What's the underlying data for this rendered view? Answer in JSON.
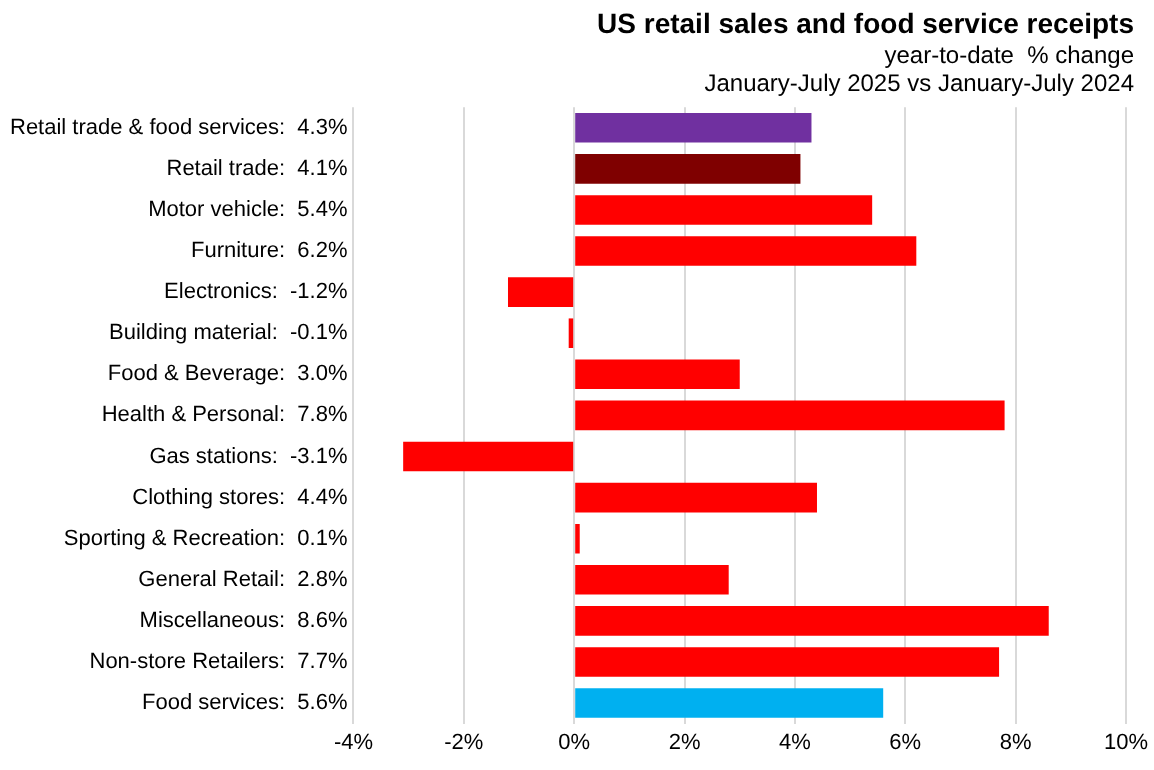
{
  "chart_data": {
    "type": "bar",
    "orientation": "horizontal",
    "title": "US retail sales and food service receipts",
    "subtitle": "year-to-date  % change",
    "annotations": [
      "January-July 2025 vs January-July 2024"
    ],
    "categories": [
      "Retail trade & food services:  4.3%",
      "Retail trade:  4.1%",
      "Motor vehicle:  5.4%",
      "Furniture:  6.2%",
      "Electronics:  -1.2%",
      "Building material:  -0.1%",
      "Food & Beverage:  3.0%",
      "Health & Personal:  7.8%",
      "Gas stations:  -3.1%",
      "Clothing stores:  4.4%",
      "Sporting & Recreation:  0.1%",
      "General Retail:  2.8%",
      "Miscellaneous:  8.6%",
      "Non-store Retailers:  7.7%",
      "Food services:  5.6%"
    ],
    "values": [
      4.3,
      4.1,
      5.4,
      6.2,
      -1.2,
      -0.1,
      3.0,
      7.8,
      -3.1,
      4.4,
      0.1,
      2.8,
      8.6,
      7.7,
      5.6
    ],
    "colors": [
      "#7030a0",
      "#7f0000",
      "#ff0000",
      "#ff0000",
      "#ff0000",
      "#ff0000",
      "#ff0000",
      "#ff0000",
      "#ff0000",
      "#ff0000",
      "#ff0000",
      "#ff0000",
      "#ff0000",
      "#ff0000",
      "#00b0f0"
    ],
    "xlim": [
      -4,
      10
    ],
    "xticks": [
      {
        "value": -4,
        "label": "-4%"
      },
      {
        "value": -2,
        "label": "-2%"
      },
      {
        "value": 0,
        "label": "0%"
      },
      {
        "value": 2,
        "label": "2%"
      },
      {
        "value": 4,
        "label": "4%"
      },
      {
        "value": 6,
        "label": "6%"
      },
      {
        "value": 8,
        "label": "8%"
      },
      {
        "value": 10,
        "label": "10%"
      }
    ],
    "grid": "x",
    "legend": false
  }
}
